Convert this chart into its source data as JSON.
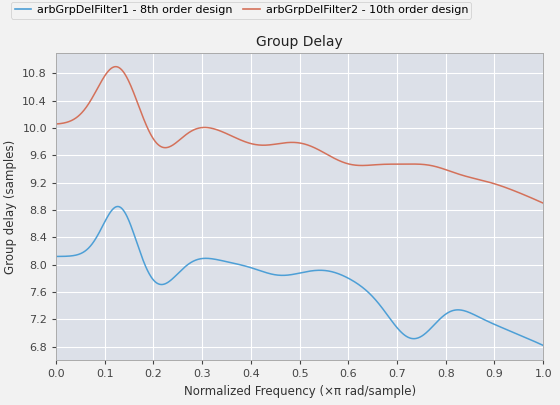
{
  "title": "Group Delay",
  "xlabel": "Normalized Frequency (×π rad/sample)",
  "ylabel": "Group delay (samples)",
  "xlim": [
    0,
    1.0
  ],
  "ylim": [
    6.6,
    11.1
  ],
  "yticks": [
    6.8,
    7.2,
    7.6,
    8.0,
    8.4,
    8.8,
    9.2,
    9.6,
    10.0,
    10.4,
    10.8
  ],
  "xticks": [
    0,
    0.1,
    0.2,
    0.3,
    0.4,
    0.5,
    0.6,
    0.7,
    0.8,
    0.9,
    1.0
  ],
  "legend1_label": "arbGrpDelFilter1 - 8th order design",
  "legend2_label": "arbGrpDelFilter2 - 10th order design",
  "line1_color": "#4d9fd6",
  "line2_color": "#d4715a",
  "axes_bg": "#dce0e8",
  "fig_bg": "#f2f2f2",
  "grid_color": "#ffffff",
  "title_fontsize": 10,
  "label_fontsize": 8.5,
  "tick_fontsize": 8,
  "legend_fontsize": 8
}
